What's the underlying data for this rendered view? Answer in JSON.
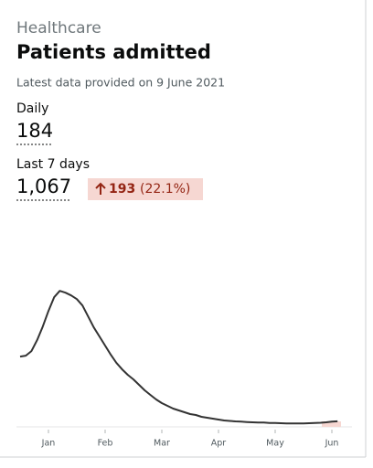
{
  "caption": "Healthcare",
  "title": "Patients admitted",
  "latest": "Latest data provided on 9 June 2021",
  "daily": {
    "label": "Daily",
    "value": "184"
  },
  "weekly": {
    "label": "Last 7 days",
    "value": "1,067",
    "change": "193",
    "change_pct": "(22.1%)"
  },
  "chart_data": {
    "type": "line",
    "color": "#333333",
    "categories": [
      null,
      null,
      null,
      null,
      null,
      "Jan",
      null,
      null,
      null,
      null,
      null,
      null,
      null,
      null,
      null,
      "Feb",
      null,
      null,
      null,
      null,
      null,
      null,
      null,
      null,
      null,
      "Mar",
      null,
      null,
      null,
      null,
      null,
      null,
      null,
      null,
      null,
      "Apr",
      null,
      null,
      null,
      null,
      null,
      null,
      null,
      null,
      null,
      "May",
      null,
      null,
      null,
      null,
      null,
      null,
      null,
      null,
      null,
      "Jun",
      null
    ],
    "values": [
      2310,
      2340,
      2490,
      2850,
      3300,
      3810,
      4260,
      4470,
      4410,
      4320,
      4200,
      3990,
      3630,
      3270,
      2970,
      2670,
      2370,
      2100,
      1890,
      1710,
      1560,
      1380,
      1200,
      1050,
      900,
      780,
      690,
      600,
      540,
      480,
      420,
      390,
      330,
      300,
      270,
      240,
      210,
      195,
      180,
      170,
      160,
      150,
      145,
      140,
      130,
      125,
      120,
      115,
      110,
      110,
      115,
      120,
      125,
      135,
      150,
      170,
      184
    ],
    "ylim": [
      0,
      7000
    ]
  }
}
